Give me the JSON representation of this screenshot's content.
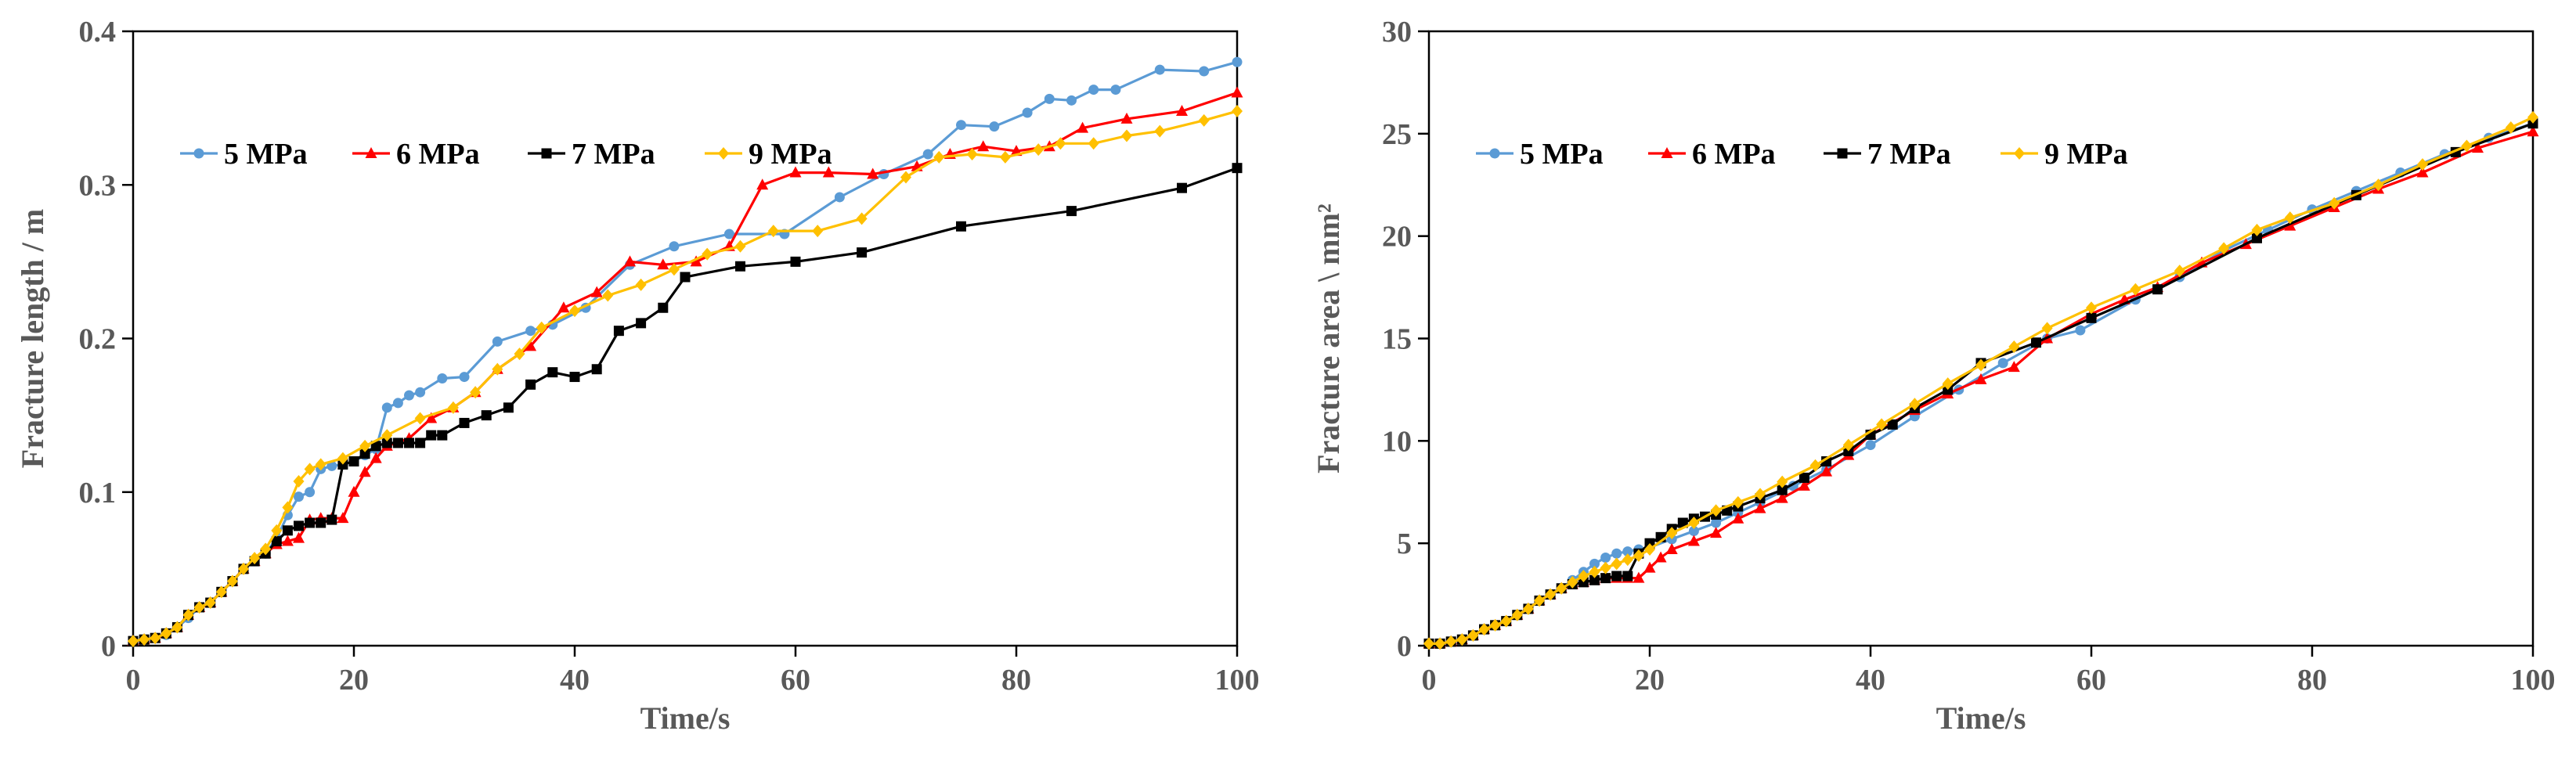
{
  "chart_data": [
    {
      "type": "line",
      "title": "",
      "xlabel": "Time/s",
      "ylabel": "Fracture length / m",
      "xlim": [
        0,
        100
      ],
      "ylim": [
        0,
        0.4
      ],
      "xticks": [
        0,
        20,
        40,
        60,
        80,
        100
      ],
      "yticks": [
        0,
        0.1,
        0.2,
        0.3,
        0.4
      ],
      "xtick_labels": [
        "0",
        "20",
        "40",
        "60",
        "80",
        "100"
      ],
      "ytick_labels": [
        "0",
        "0.1",
        "0.2",
        "0.3",
        "0.4"
      ],
      "legend_position": "upper-left",
      "series": [
        {
          "name": "5 MPa",
          "color": "#5B9BD5",
          "marker": "circle",
          "x": [
            0,
            1,
            2,
            3,
            4,
            5,
            6,
            7,
            8,
            9,
            10,
            11,
            12,
            13,
            14,
            15,
            16,
            17,
            18,
            19,
            20,
            21,
            22,
            23,
            24,
            25,
            26,
            28,
            30,
            33,
            36,
            38,
            41,
            45,
            49,
            54,
            59,
            64,
            68,
            72,
            75,
            78,
            81,
            83,
            85,
            87,
            89,
            93,
            97,
            100
          ],
          "y": [
            0.003,
            0.004,
            0.005,
            0.007,
            0.012,
            0.018,
            0.025,
            0.028,
            0.035,
            0.042,
            0.05,
            0.055,
            0.06,
            0.07,
            0.085,
            0.097,
            0.1,
            0.115,
            0.117,
            0.118,
            0.12,
            0.124,
            0.128,
            0.155,
            0.158,
            0.163,
            0.165,
            0.174,
            0.175,
            0.198,
            0.205,
            0.209,
            0.22,
            0.248,
            0.26,
            0.268,
            0.268,
            0.292,
            0.307,
            0.32,
            0.339,
            0.338,
            0.347,
            0.356,
            0.355,
            0.362,
            0.362,
            0.375,
            0.374,
            0.38
          ]
        },
        {
          "name": "6 MPa",
          "color": "#FF0000",
          "marker": "triangle",
          "x": [
            0,
            1,
            2,
            3,
            4,
            5,
            6,
            7,
            8,
            9,
            10,
            11,
            12,
            13,
            14,
            15,
            16,
            17,
            18,
            19,
            20,
            21,
            22,
            23,
            25,
            27,
            29,
            31,
            33,
            36,
            39,
            42,
            45,
            48,
            51,
            54,
            57,
            60,
            63,
            67,
            71,
            74,
            77,
            80,
            83,
            86,
            90,
            95,
            100
          ],
          "y": [
            0.003,
            0.004,
            0.005,
            0.008,
            0.012,
            0.02,
            0.025,
            0.028,
            0.035,
            0.042,
            0.05,
            0.055,
            0.06,
            0.066,
            0.068,
            0.07,
            0.082,
            0.083,
            0.083,
            0.083,
            0.1,
            0.113,
            0.122,
            0.13,
            0.135,
            0.148,
            0.155,
            0.165,
            0.18,
            0.195,
            0.22,
            0.23,
            0.25,
            0.248,
            0.25,
            0.26,
            0.3,
            0.308,
            0.308,
            0.307,
            0.312,
            0.32,
            0.325,
            0.322,
            0.325,
            0.337,
            0.343,
            0.348,
            0.36
          ]
        },
        {
          "name": "7 MPa",
          "color": "#000000",
          "marker": "square",
          "x": [
            0,
            1,
            2,
            3,
            4,
            5,
            6,
            7,
            8,
            9,
            10,
            11,
            12,
            13,
            14,
            15,
            16,
            17,
            18,
            19,
            20,
            21,
            22,
            23,
            24,
            25,
            26,
            27,
            28,
            30,
            32,
            34,
            36,
            38,
            40,
            42,
            44,
            46,
            48,
            50,
            55,
            60,
            66,
            75,
            85,
            95,
            100
          ],
          "y": [
            0.003,
            0.004,
            0.005,
            0.008,
            0.012,
            0.02,
            0.025,
            0.028,
            0.035,
            0.042,
            0.05,
            0.055,
            0.06,
            0.068,
            0.075,
            0.078,
            0.08,
            0.08,
            0.082,
            0.118,
            0.12,
            0.125,
            0.13,
            0.132,
            0.132,
            0.132,
            0.132,
            0.137,
            0.137,
            0.145,
            0.15,
            0.155,
            0.17,
            0.178,
            0.175,
            0.18,
            0.205,
            0.21,
            0.22,
            0.24,
            0.247,
            0.25,
            0.256,
            0.273,
            0.283,
            0.298,
            0.311
          ]
        },
        {
          "name": "9 MPa",
          "color": "#FFC000",
          "marker": "diamond",
          "x": [
            0,
            1,
            2,
            3,
            4,
            5,
            6,
            7,
            8,
            9,
            10,
            11,
            12,
            13,
            14,
            15,
            16,
            17,
            19,
            21,
            23,
            26,
            29,
            31,
            33,
            35,
            37,
            40,
            43,
            46,
            49,
            52,
            55,
            58,
            62,
            66,
            70,
            73,
            76,
            79,
            82,
            84,
            87,
            90,
            93,
            97,
            100
          ],
          "y": [
            0.003,
            0.004,
            0.005,
            0.008,
            0.012,
            0.02,
            0.025,
            0.028,
            0.035,
            0.042,
            0.05,
            0.057,
            0.063,
            0.075,
            0.09,
            0.107,
            0.115,
            0.118,
            0.122,
            0.13,
            0.137,
            0.148,
            0.155,
            0.165,
            0.18,
            0.19,
            0.207,
            0.218,
            0.228,
            0.235,
            0.245,
            0.255,
            0.26,
            0.27,
            0.27,
            0.278,
            0.305,
            0.318,
            0.32,
            0.318,
            0.323,
            0.327,
            0.327,
            0.332,
            0.335,
            0.342,
            0.348
          ]
        }
      ]
    },
    {
      "type": "line",
      "title": "",
      "xlabel": "Time/s",
      "ylabel": "Fracture area \\ mm²",
      "xlim": [
        0,
        100
      ],
      "ylim": [
        0,
        30
      ],
      "xticks": [
        0,
        20,
        40,
        60,
        80,
        100
      ],
      "yticks": [
        0,
        5,
        10,
        15,
        20,
        25,
        30
      ],
      "xtick_labels": [
        "0",
        "20",
        "40",
        "60",
        "80",
        "100"
      ],
      "ytick_labels": [
        "0",
        "5",
        "10",
        "15",
        "20",
        "25",
        "30"
      ],
      "legend_position": "upper-left",
      "series": [
        {
          "name": "5 MPa",
          "color": "#5B9BD5",
          "marker": "circle",
          "x": [
            0,
            1,
            2,
            3,
            4,
            5,
            6,
            7,
            8,
            9,
            10,
            11,
            12,
            13,
            14,
            15,
            16,
            17,
            18,
            19,
            20,
            22,
            24,
            26,
            28,
            30,
            33,
            36,
            40,
            44,
            48,
            52,
            56,
            59,
            64,
            68,
            72,
            76,
            80,
            84,
            88,
            92,
            96,
            100
          ],
          "y": [
            0.1,
            0.1,
            0.2,
            0.3,
            0.5,
            0.8,
            1.0,
            1.2,
            1.5,
            1.8,
            2.2,
            2.5,
            2.8,
            3.2,
            3.6,
            4.0,
            4.3,
            4.5,
            4.6,
            4.7,
            4.8,
            5.2,
            5.6,
            6.0,
            6.5,
            7.0,
            7.8,
            8.6,
            9.8,
            11.2,
            12.5,
            13.8,
            15.0,
            15.4,
            16.9,
            18.0,
            19.3,
            20.3,
            21.3,
            22.2,
            23.1,
            24.0,
            24.8,
            25.5
          ]
        },
        {
          "name": "6 MPa",
          "color": "#FF0000",
          "marker": "triangle",
          "x": [
            0,
            1,
            2,
            3,
            4,
            5,
            6,
            7,
            8,
            9,
            10,
            11,
            12,
            13,
            14,
            15,
            16,
            17,
            18,
            19,
            20,
            21,
            22,
            24,
            26,
            28,
            30,
            32,
            34,
            36,
            38,
            40,
            44,
            47,
            50,
            53,
            56,
            60,
            63,
            66,
            70,
            74,
            78,
            82,
            86,
            90,
            95,
            100
          ],
          "y": [
            0.1,
            0.1,
            0.2,
            0.3,
            0.5,
            0.8,
            1.0,
            1.2,
            1.5,
            1.8,
            2.2,
            2.5,
            2.8,
            3.0,
            3.1,
            3.2,
            3.3,
            3.3,
            3.3,
            3.3,
            3.8,
            4.3,
            4.7,
            5.1,
            5.5,
            6.2,
            6.7,
            7.2,
            7.8,
            8.5,
            9.3,
            10.3,
            11.5,
            12.3,
            13.0,
            13.6,
            15.0,
            16.2,
            16.9,
            17.5,
            18.7,
            19.6,
            20.5,
            21.4,
            22.3,
            23.1,
            24.3,
            25.1
          ]
        },
        {
          "name": "7 MPa",
          "color": "#000000",
          "marker": "square",
          "x": [
            0,
            1,
            2,
            3,
            4,
            5,
            6,
            7,
            8,
            9,
            10,
            11,
            12,
            13,
            14,
            15,
            16,
            17,
            18,
            19,
            20,
            21,
            22,
            23,
            24,
            25,
            26,
            27,
            28,
            30,
            32,
            34,
            36,
            38,
            40,
            42,
            44,
            47,
            50,
            55,
            60,
            66,
            75,
            84,
            93,
            100
          ],
          "y": [
            0.1,
            0.1,
            0.2,
            0.3,
            0.5,
            0.8,
            1.0,
            1.2,
            1.5,
            1.8,
            2.2,
            2.5,
            2.8,
            3.0,
            3.1,
            3.2,
            3.3,
            3.4,
            3.4,
            4.5,
            5.0,
            5.3,
            5.7,
            6.0,
            6.2,
            6.3,
            6.4,
            6.6,
            6.8,
            7.2,
            7.6,
            8.2,
            9.0,
            9.5,
            10.3,
            10.8,
            11.6,
            12.5,
            13.8,
            14.8,
            16.0,
            17.4,
            19.9,
            22.0,
            24.1,
            25.5
          ]
        },
        {
          "name": "9 MPa",
          "color": "#FFC000",
          "marker": "diamond",
          "x": [
            0,
            1,
            2,
            3,
            4,
            5,
            6,
            7,
            8,
            9,
            10,
            11,
            12,
            13,
            14,
            15,
            16,
            17,
            18,
            19,
            20,
            22,
            24,
            26,
            28,
            30,
            32,
            35,
            38,
            41,
            44,
            47,
            50,
            53,
            56,
            60,
            64,
            68,
            72,
            75,
            78,
            82,
            86,
            90,
            94,
            98,
            100
          ],
          "y": [
            0.1,
            0.1,
            0.2,
            0.3,
            0.5,
            0.8,
            1.0,
            1.2,
            1.5,
            1.8,
            2.2,
            2.5,
            2.8,
            3.1,
            3.4,
            3.6,
            3.8,
            4.0,
            4.2,
            4.4,
            4.7,
            5.5,
            6.0,
            6.6,
            7.0,
            7.4,
            8.0,
            8.8,
            9.8,
            10.8,
            11.8,
            12.8,
            13.7,
            14.6,
            15.5,
            16.5,
            17.4,
            18.3,
            19.4,
            20.3,
            20.9,
            21.6,
            22.5,
            23.5,
            24.4,
            25.3,
            25.8
          ]
        }
      ]
    }
  ]
}
